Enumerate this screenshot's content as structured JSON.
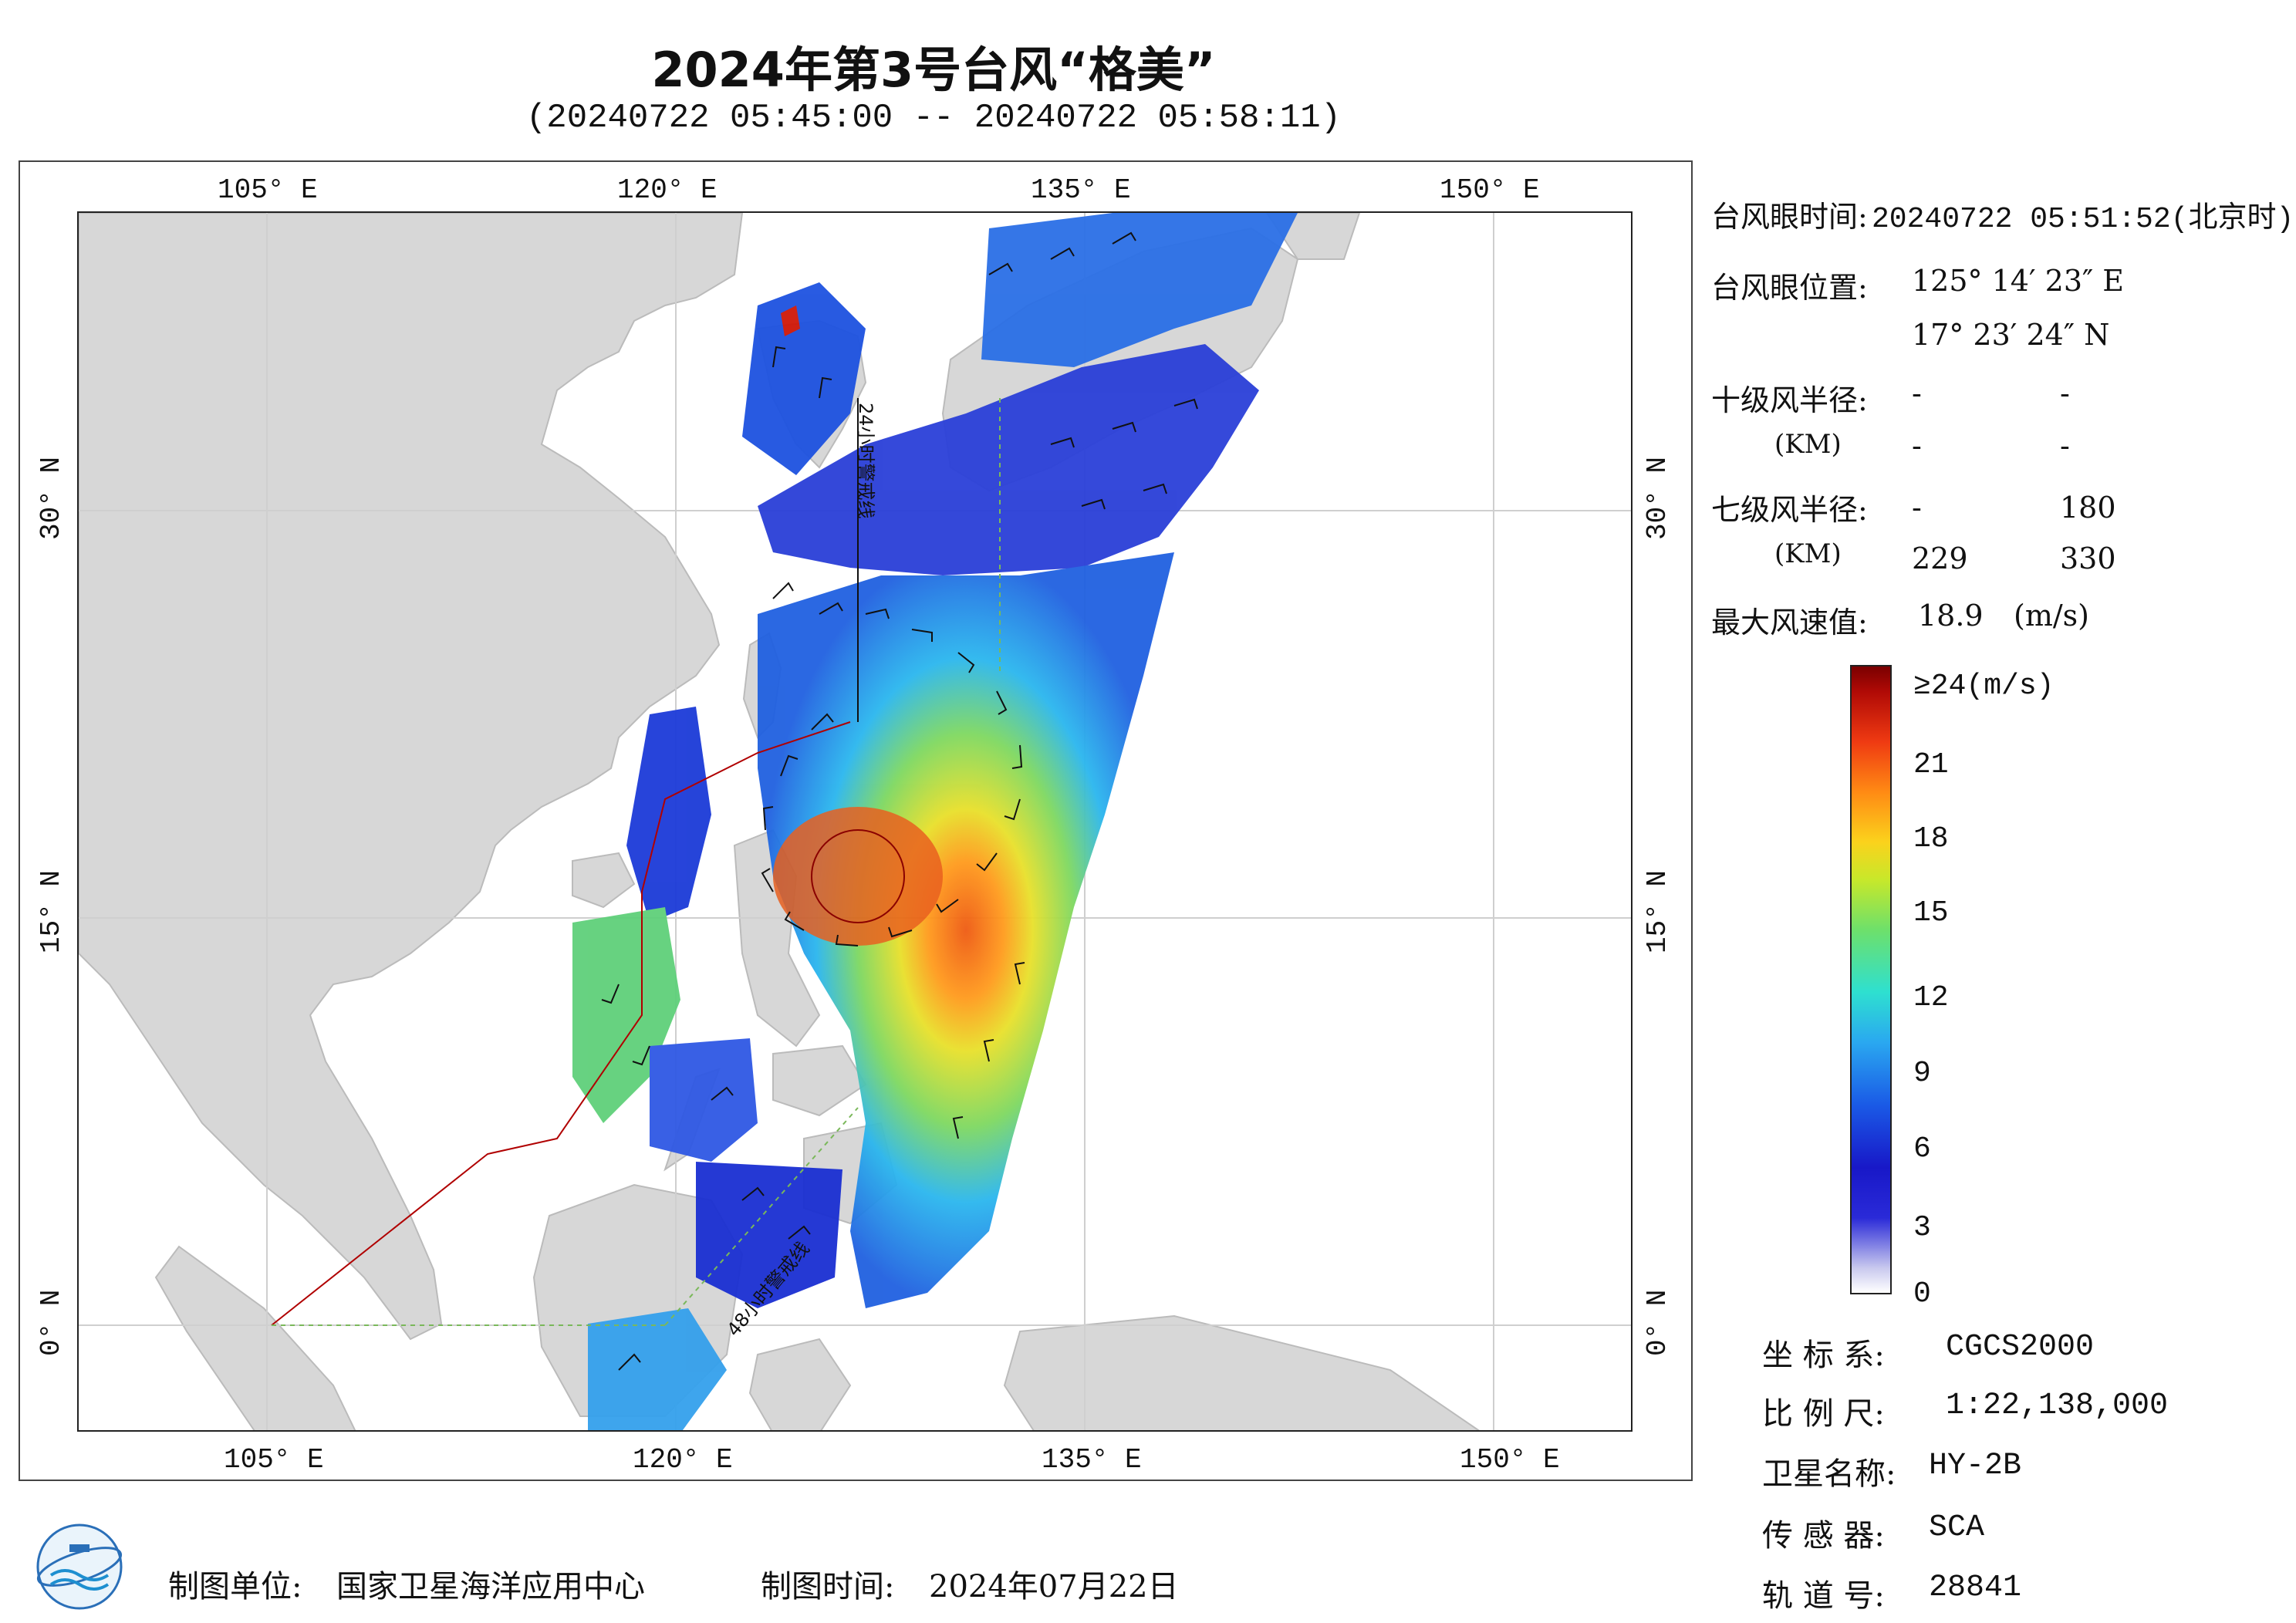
{
  "header": {
    "title": "2024年第3号台风“格美”",
    "subtitle": "(20240722 05:45:00 -- 20240722 05:58:11)"
  },
  "map": {
    "lon_ticks_top": [
      "105° E",
      "120° E",
      "135° E",
      "150° E"
    ],
    "lon_ticks_bottom": [
      "105° E",
      "120° E",
      "135° E",
      "150° E"
    ],
    "lat_ticks_left": [
      "30° N",
      "15° N",
      "0° N"
    ],
    "lat_ticks_right": [
      "30° N",
      "15° N",
      "0° N"
    ],
    "lon_range": [
      98,
      155
    ],
    "lat_range": [
      -4,
      41
    ],
    "track_label_top": "24小时警戒线",
    "track_label_bottom": "48小时警戒线",
    "colors": {
      "land": "#d7d7d7",
      "sea": "#ffffff",
      "grid": "#c8c8c8",
      "track": "#b00000",
      "line_green": "#7ab85a"
    }
  },
  "typhoon": {
    "eye_time_label": "台风眼时间:",
    "eye_time_value": "20240722 05:51:52(北京时)",
    "eye_pos_label": "台风眼位置:",
    "eye_lon": "125° 14′ 23″ E",
    "eye_lat": "17° 23′ 24″ N",
    "r10_label": "十级风半径:",
    "r10_unit": "(KM)",
    "r10_values": [
      "-",
      "-",
      "-",
      "-"
    ],
    "r7_label": "七级风半径:",
    "r7_unit": "(KM)",
    "r7_values": [
      "-",
      "180",
      "229",
      "330"
    ],
    "max_wind_label": "最大风速值:",
    "max_wind_value": "18.9",
    "max_wind_unit": "(m/s)"
  },
  "colorbar": {
    "top_label": "≥24(m/s)",
    "ticks": [
      "21",
      "18",
      "15",
      "12",
      "9",
      "6",
      "3",
      "0"
    ]
  },
  "meta": {
    "crs_label": "坐 标 系:",
    "crs_value": "CGCS2000",
    "scale_label": "比 例 尺:",
    "scale_value": "1:22,138,000",
    "sat_label": "卫星名称:",
    "sat_value": "HY-2B",
    "sensor_label": "传 感 器:",
    "sensor_value": "SCA",
    "orbit_label": "轨 道 号:",
    "orbit_value": "28841"
  },
  "footer": {
    "producer_label": "制图单位:",
    "producer_value": "国家卫星海洋应用中心",
    "date_label": "制图时间:",
    "date_value": "2024年07月22日"
  }
}
